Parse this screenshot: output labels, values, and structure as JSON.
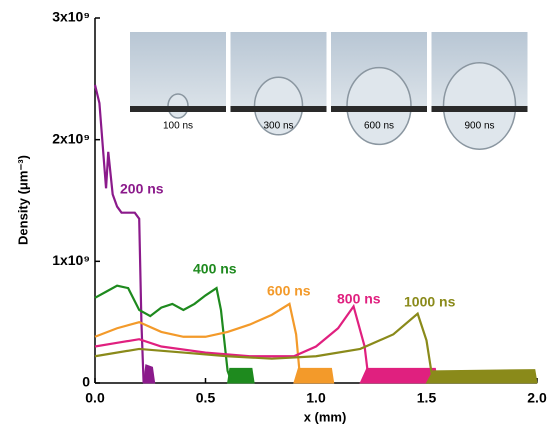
{
  "chart_data": {
    "type": "line",
    "xlabel": "x (mm)",
    "ylabel": "Density (μm⁻³)",
    "xlim": [
      0,
      2.0
    ],
    "ylim": [
      0,
      3000000000
    ],
    "xticks": [
      {
        "value": 0,
        "label": "0.0"
      },
      {
        "value": 0.5,
        "label": "0.5"
      },
      {
        "value": 1.0,
        "label": "1.0"
      },
      {
        "value": 1.5,
        "label": "1.5"
      },
      {
        "value": 2.0,
        "label": "2.0"
      }
    ],
    "yticks": [
      0,
      {
        "value": 1000000000,
        "label": "1x10⁹"
      },
      {
        "value": 2000000000,
        "label": "2x10⁹"
      },
      {
        "value": 3000000000,
        "label": "3x10⁹"
      }
    ],
    "inset_labels": [
      "100 ns",
      "300 ns",
      "600 ns",
      "900 ns"
    ],
    "series": [
      {
        "name": "200 ns",
        "color": "#8b1a8b",
        "x": [
          0,
          0.02,
          0.05,
          0.06,
          0.08,
          0.1,
          0.12,
          0.18,
          0.2,
          0.21,
          0.22
        ],
        "values": [
          2450000000,
          2300000000,
          1600000000,
          1900000000,
          1550000000,
          1450000000,
          1400000000,
          1400000000,
          1350000000,
          500000000,
          0
        ],
        "fill_x": [
          0.22,
          0.23,
          0.26,
          0.27
        ],
        "fill_values": [
          0,
          150000000,
          130000000,
          0
        ]
      },
      {
        "name": "400 ns",
        "color": "#1e8a1e",
        "x": [
          0,
          0.05,
          0.1,
          0.15,
          0.2,
          0.25,
          0.3,
          0.35,
          0.4,
          0.45,
          0.5,
          0.55,
          0.57,
          0.6,
          0.62
        ],
        "values": [
          700000000,
          750000000,
          800000000,
          780000000,
          600000000,
          550000000,
          620000000,
          650000000,
          600000000,
          650000000,
          720000000,
          780000000,
          600000000,
          100000000,
          0
        ],
        "fill_x": [
          0.6,
          0.61,
          0.71,
          0.72
        ],
        "fill_values": [
          0,
          120000000,
          120000000,
          0
        ]
      },
      {
        "name": "600 ns",
        "color": "#f39a2a",
        "x": [
          0,
          0.1,
          0.2,
          0.3,
          0.4,
          0.5,
          0.6,
          0.7,
          0.8,
          0.88,
          0.91,
          0.93
        ],
        "values": [
          380000000,
          450000000,
          500000000,
          420000000,
          380000000,
          380000000,
          420000000,
          480000000,
          560000000,
          650000000,
          400000000,
          0
        ],
        "fill_x": [
          0.9,
          0.92,
          1.07,
          1.08
        ],
        "fill_values": [
          0,
          120000000,
          120000000,
          0
        ]
      },
      {
        "name": "800 ns",
        "color": "#e0207f",
        "x": [
          0,
          0.1,
          0.2,
          0.3,
          0.5,
          0.7,
          0.9,
          1.0,
          1.1,
          1.17,
          1.22,
          1.24
        ],
        "values": [
          300000000,
          330000000,
          360000000,
          300000000,
          250000000,
          220000000,
          220000000,
          300000000,
          450000000,
          630000000,
          300000000,
          0
        ],
        "fill_x": [
          1.2,
          1.23,
          1.54,
          1.55
        ],
        "fill_values": [
          0,
          120000000,
          120000000,
          0
        ]
      },
      {
        "name": "1000 ns",
        "color": "#8a8a1a",
        "x": [
          0,
          0.2,
          0.4,
          0.6,
          0.8,
          1.0,
          1.2,
          1.35,
          1.46,
          1.5,
          1.53
        ],
        "values": [
          220000000,
          280000000,
          250000000,
          220000000,
          200000000,
          220000000,
          280000000,
          400000000,
          570000000,
          350000000,
          0
        ],
        "fill_x": [
          1.5,
          1.53,
          1.99,
          2.0
        ],
        "fill_values": [
          0,
          100000000,
          110000000,
          0
        ]
      }
    ]
  }
}
